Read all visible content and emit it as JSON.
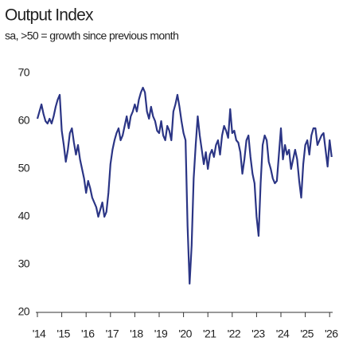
{
  "chart_data": {
    "type": "line",
    "title": "Output Index",
    "subtitle": "sa, >50 = growth since previous month",
    "color": "#2b3585",
    "ylim": [
      20,
      70
    ],
    "yticks": [
      20,
      30,
      40,
      50,
      60,
      70
    ],
    "categories": [
      "'14",
      null,
      null,
      null,
      null,
      null,
      null,
      null,
      null,
      null,
      null,
      null,
      "'15",
      null,
      null,
      null,
      null,
      null,
      null,
      null,
      null,
      null,
      null,
      null,
      "'16",
      null,
      null,
      null,
      null,
      null,
      null,
      null,
      null,
      null,
      null,
      null,
      "'17",
      null,
      null,
      null,
      null,
      null,
      null,
      null,
      null,
      null,
      null,
      null,
      "'18",
      null,
      null,
      null,
      null,
      null,
      null,
      null,
      null,
      null,
      null,
      null,
      "'19",
      null,
      null,
      null,
      null,
      null,
      null,
      null,
      null,
      null,
      null,
      null,
      "'20",
      null,
      null,
      null,
      null,
      null,
      null,
      null,
      null,
      null,
      null,
      null,
      "'21",
      null,
      null,
      null,
      null,
      null,
      null,
      null,
      null,
      null,
      null,
      null,
      "'22",
      null,
      null,
      null,
      null,
      null,
      null,
      null,
      null,
      null,
      null,
      null,
      "'23",
      null,
      null,
      null,
      null,
      null,
      null,
      null,
      null,
      null,
      null,
      null,
      "'24",
      null,
      null,
      null,
      null,
      null,
      null,
      null,
      null,
      null,
      null,
      null,
      "'25",
      null,
      null,
      null,
      null,
      null,
      null,
      null,
      null,
      null,
      null,
      null,
      "'26",
      null
    ],
    "values": [
      60.5,
      62,
      63.5,
      61.5,
      60,
      59.5,
      60.5,
      59.5,
      61,
      63,
      64.5,
      65.5,
      58,
      55,
      51.5,
      54,
      57.5,
      58.5,
      55.5,
      53,
      55,
      52,
      50,
      48,
      45,
      47.5,
      46,
      44,
      43,
      42,
      40,
      41.5,
      43,
      40,
      41,
      45,
      51,
      54,
      56,
      57.5,
      58.5,
      56,
      57,
      59,
      61,
      58.5,
      61,
      62,
      63.5,
      62,
      64.5,
      66,
      67,
      66,
      62,
      60.5,
      63,
      61,
      60,
      58,
      57.5,
      60,
      57,
      56,
      59,
      58,
      56,
      62,
      63.5,
      65.5,
      63,
      60,
      57.5,
      56,
      38,
      26,
      34,
      48,
      55,
      61,
      57,
      54,
      51,
      53.5,
      50,
      53,
      54,
      52.5,
      55,
      56,
      53,
      57,
      59,
      58,
      56.5,
      62.5,
      57.5,
      58,
      56,
      55.5,
      53.5,
      49,
      52,
      56,
      57,
      52.5,
      49,
      47,
      40,
      36,
      47,
      55,
      57,
      56,
      51.5,
      50,
      48,
      47,
      47.5,
      53,
      58.5,
      52,
      55,
      53,
      54,
      50,
      52,
      54,
      52,
      47.5,
      44,
      51,
      55,
      56,
      53,
      57,
      58.5,
      58.5,
      55,
      56,
      57,
      57.5,
      54,
      50.5,
      56,
      52.5
    ]
  }
}
